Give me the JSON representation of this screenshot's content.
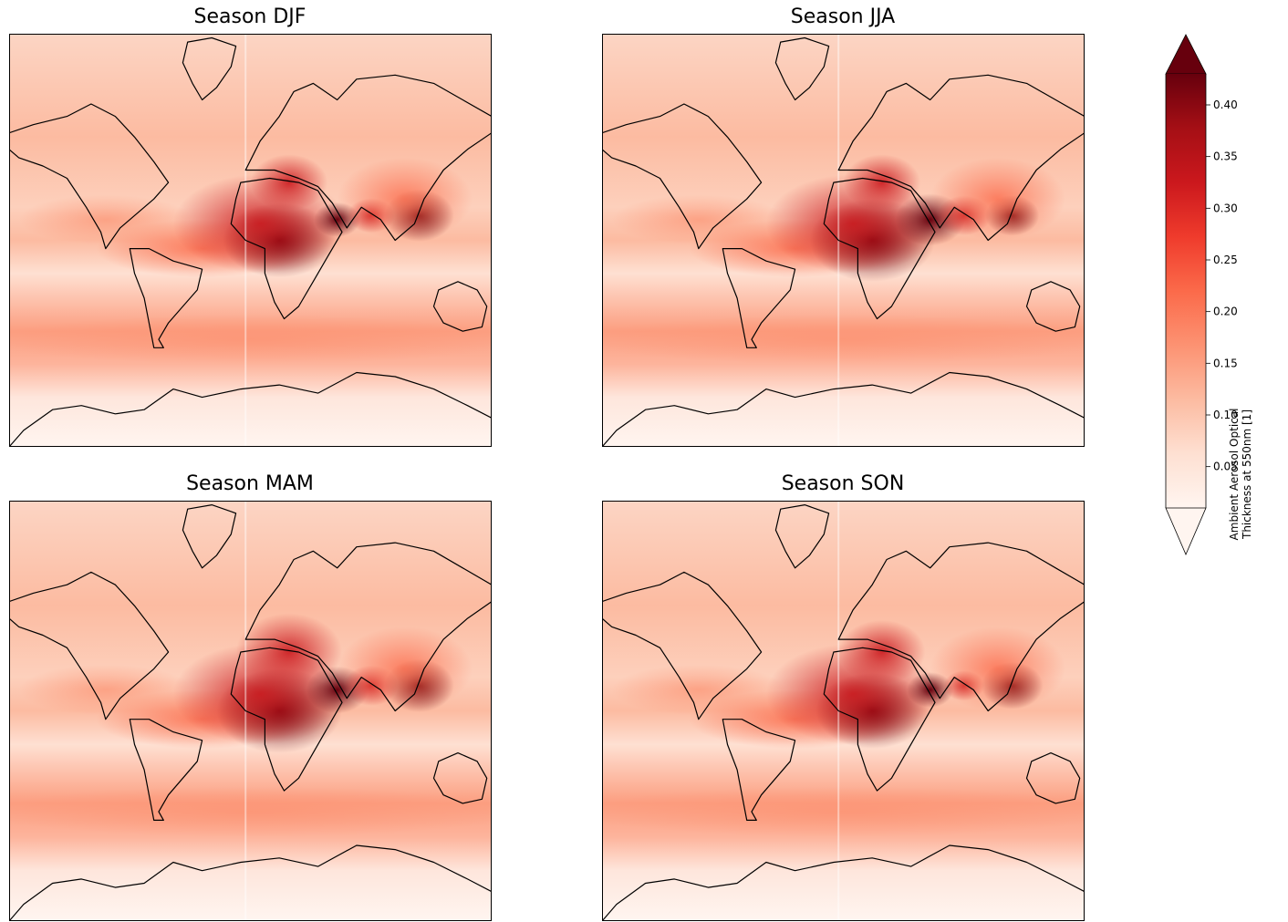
{
  "panels": [
    {
      "id": "djf",
      "title": "Season DJF"
    },
    {
      "id": "jja",
      "title": "Season JJA"
    },
    {
      "id": "mam",
      "title": "Season MAM"
    },
    {
      "id": "son",
      "title": "Season SON"
    }
  ],
  "colorbar": {
    "label_line1": "Ambient Aerosol Optical",
    "label_line2": "Thickness at 550nm [1]",
    "ticks": [
      0.05,
      0.1,
      0.15,
      0.2,
      0.25,
      0.3,
      0.35,
      0.4
    ],
    "tick_labels": [
      "0.05",
      "0.10",
      "0.15",
      "0.20",
      "0.25",
      "0.30",
      "0.35",
      "0.40"
    ],
    "range": [
      0.01,
      0.43
    ],
    "extend": "both",
    "colormap": "Reds",
    "colors": [
      "#fff5f0",
      "#fee0d2",
      "#fcbba1",
      "#fc9272",
      "#fb6a4a",
      "#ef3b2c",
      "#cb181d",
      "#a50f15",
      "#67000d"
    ]
  },
  "chart_data": {
    "type": "heatmap",
    "title": "",
    "panels": [
      "Season DJF",
      "Season JJA",
      "Season MAM",
      "Season SON"
    ],
    "colorbar_label": "Ambient Aerosol Optical Thickness at 550nm [1]",
    "vmin": 0.01,
    "vmax": 0.43,
    "extend": "both"
  }
}
